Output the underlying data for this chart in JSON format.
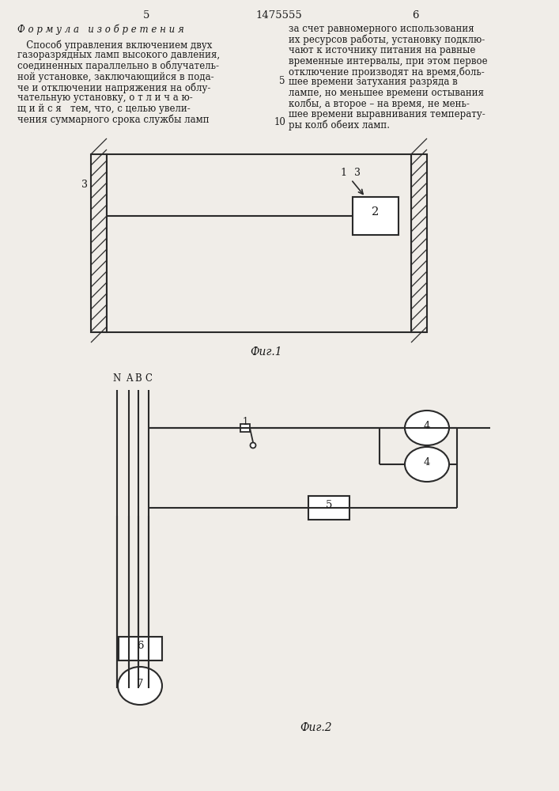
{
  "bg_color": "#f0ede8",
  "text_color": "#1a1a1a",
  "line_color": "#2a2a2a",
  "header_left_num": "5",
  "header_center": "1475555",
  "header_right_num": "6",
  "left_col_title": "Ф о р м у л а   и з о б р е т е н и я",
  "left_col_lines": [
    "   Способ управления включением двух",
    "газоразрядных ламп высокого давления,",
    "соединенных параллельно в облучатель-",
    "ной установке, заключающийся в пода-",
    "че и отключении напряжения на облу-",
    "чательную установку, о т л и ч а ю-",
    "щ и й с я   тем, что, с целью увели-",
    "чения суммарного срока службы ламп"
  ],
  "right_col_lines": [
    "за счет равномерного использования",
    "их ресурсов работы, установку подклю-",
    "чают к источнику питания на равные",
    "временные интервалы, при этом первое",
    "отключение производят на время,боль-",
    "шее времени затухания разряда в",
    "лампе, но меньшее времени остывания",
    "колбы, а второе – на время, не мень-",
    "шее времени выравнивания температу-",
    "ры колб обеих ламп."
  ],
  "fig1_caption": "Фиг.1",
  "fig2_caption": "Фиг.2"
}
